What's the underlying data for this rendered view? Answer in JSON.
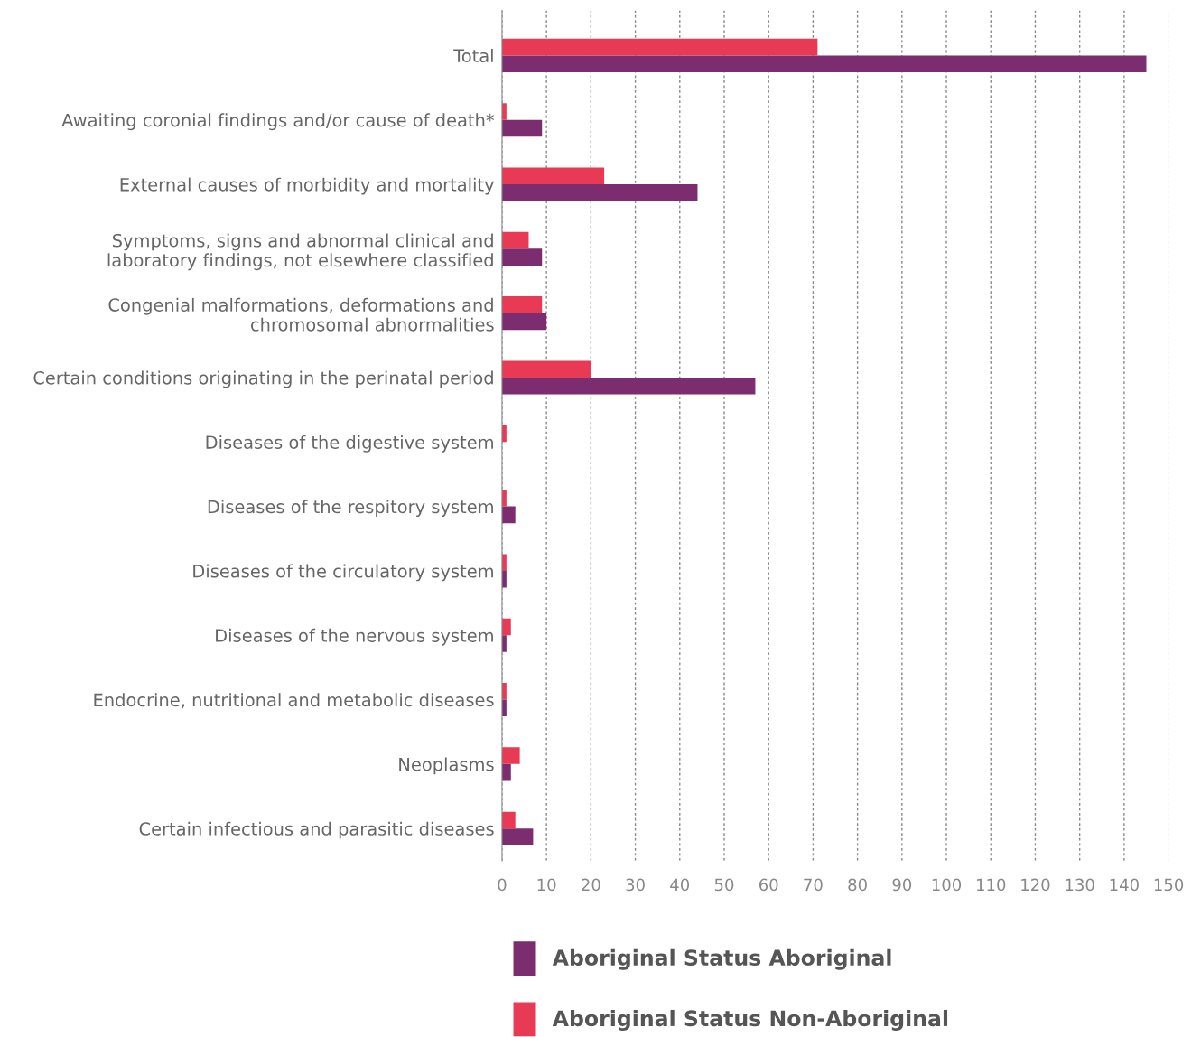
{
  "chart_data": {
    "type": "bar",
    "orientation": "horizontal",
    "categories": [
      "Total",
      "Awaiting coronial findings and/or cause of death*",
      "External causes of morbidity and mortality",
      "Symptoms, signs and abnormal clinical and\nlaboratory findings, not elsewhere classified",
      "Congenial malformations, deformations and\nchromosomal abnormalities",
      "Certain conditions originating in the perinatal period",
      "Diseases of the digestive system",
      "Diseases of the respitory system",
      "Diseases of the circulatory system",
      "Diseases of the nervous system",
      "Endocrine, nutritional and metabolic diseases",
      "Neoplasms",
      "Certain infectious and parasitic diseases"
    ],
    "series": [
      {
        "name": "Aboriginal Status Aboriginal",
        "color": "#7b2d6f",
        "values": [
          145,
          9,
          44,
          9,
          10,
          57,
          0,
          3,
          1,
          1,
          1,
          2,
          7
        ]
      },
      {
        "name": "Aboriginal Status Non-Aboriginal",
        "color": "#e83a55",
        "values": [
          71,
          1,
          23,
          6,
          9,
          20,
          1,
          1,
          1,
          2,
          1,
          4,
          3
        ]
      }
    ],
    "xlim": [
      0,
      150
    ],
    "xticks": [
      0,
      10,
      20,
      30,
      40,
      50,
      60,
      70,
      80,
      90,
      100,
      110,
      120,
      130,
      140,
      150
    ],
    "grid": "x",
    "legend": "bottom"
  }
}
